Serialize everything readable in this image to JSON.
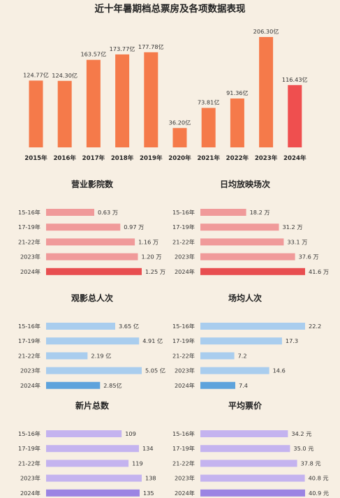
{
  "title": "近十年暑期档总票房及各项数据表现",
  "colors": {
    "background": "#f7efe3",
    "top_bar": "#f57a4a",
    "top_bar_highlight": "#ef4f4f",
    "pink": "#f09a9a",
    "pink_highlight": "#e84e50",
    "blue": "#a9cdee",
    "blue_highlight": "#5ea3dc",
    "purple": "#c4b3ef",
    "purple_highlight": "#9b84e3"
  },
  "chart_data": [
    {
      "id": "box_office",
      "type": "bar",
      "title": "近十年暑期档总票房及各项数据表现",
      "categories": [
        "2015年",
        "2016年",
        "2017年",
        "2018年",
        "2019年",
        "2020年",
        "2021年",
        "2022年",
        "2023年",
        "2024年"
      ],
      "values": [
        124.77,
        124.3,
        163.57,
        173.77,
        177.78,
        36.2,
        73.81,
        91.36,
        206.3,
        116.43
      ],
      "labels": [
        "124.77亿",
        "124.30亿",
        "163.57亿",
        "173.77亿",
        "177.78亿",
        "36.20亿",
        "73.81亿",
        "91.36亿",
        "206.30亿",
        "116.43亿"
      ],
      "highlight_index": 9,
      "ylim": [
        0,
        206.3
      ]
    },
    {
      "id": "cinemas",
      "type": "bar",
      "orientation": "horizontal",
      "title": "营业影院数",
      "categories": [
        "15-16年",
        "17-19年",
        "21-22年",
        "2023年",
        "2024年"
      ],
      "values": [
        0.63,
        0.97,
        1.16,
        1.2,
        1.25
      ],
      "labels": [
        "0.63 万",
        "0.97 万",
        "1.16 万",
        "1.20 万",
        "1.25 万"
      ],
      "highlight_index": 4,
      "palette": "pink",
      "xlim": [
        0,
        1.25
      ]
    },
    {
      "id": "daily_screenings",
      "type": "bar",
      "orientation": "horizontal",
      "title": "日均放映场次",
      "categories": [
        "15-16年",
        "17-19年",
        "21-22年",
        "2023年",
        "2024年"
      ],
      "values": [
        18.2,
        31.2,
        33.1,
        37.6,
        41.6
      ],
      "labels": [
        "18.2 万",
        "31.2 万",
        "33.1 万",
        "37.6 万",
        "41.6 万"
      ],
      "highlight_index": 4,
      "palette": "pink",
      "xlim": [
        0,
        41.6
      ]
    },
    {
      "id": "admissions",
      "type": "bar",
      "orientation": "horizontal",
      "title": "观影总人次",
      "categories": [
        "15-16年",
        "17-19年",
        "21-22年",
        "2023年",
        "2024年"
      ],
      "values": [
        3.65,
        4.91,
        2.19,
        5.05,
        2.85
      ],
      "labels": [
        "3.65 亿",
        "4.91 亿",
        "2.19 亿",
        "5.05 亿",
        "2.85亿"
      ],
      "highlight_index": 4,
      "palette": "blue",
      "xlim": [
        0,
        5.05
      ]
    },
    {
      "id": "per_screening",
      "type": "bar",
      "orientation": "horizontal",
      "title": "场均人次",
      "categories": [
        "15-16年",
        "17-19年",
        "21-22年",
        "2023年",
        "2024年"
      ],
      "values": [
        22.2,
        17.3,
        7.2,
        14.6,
        7.4
      ],
      "labels": [
        "22.2",
        "17.3",
        "7.2",
        "14.6",
        "7.4"
      ],
      "highlight_index": 4,
      "palette": "blue",
      "xlim": [
        0,
        22.2
      ]
    },
    {
      "id": "new_films",
      "type": "bar",
      "orientation": "horizontal",
      "title": "新片总数",
      "categories": [
        "15-16年",
        "17-19年",
        "21-22年",
        "2023年",
        "2024年"
      ],
      "values": [
        109,
        134,
        119,
        138,
        135
      ],
      "labels": [
        "109",
        "134",
        "119",
        "138",
        "135"
      ],
      "highlight_index": 4,
      "palette": "purple",
      "xlim": [
        0,
        138
      ]
    },
    {
      "id": "avg_price",
      "type": "bar",
      "orientation": "horizontal",
      "title": "平均票价",
      "categories": [
        "15-16年",
        "17-19年",
        "21-22年",
        "2023年",
        "2024年"
      ],
      "values": [
        34.2,
        35.0,
        37.8,
        40.8,
        40.9
      ],
      "labels": [
        "34.2 元",
        "35.0 元",
        "37.8 元",
        "40.8 元",
        "40.9 元"
      ],
      "highlight_index": 4,
      "palette": "purple",
      "xlim": [
        0,
        40.9
      ]
    }
  ]
}
